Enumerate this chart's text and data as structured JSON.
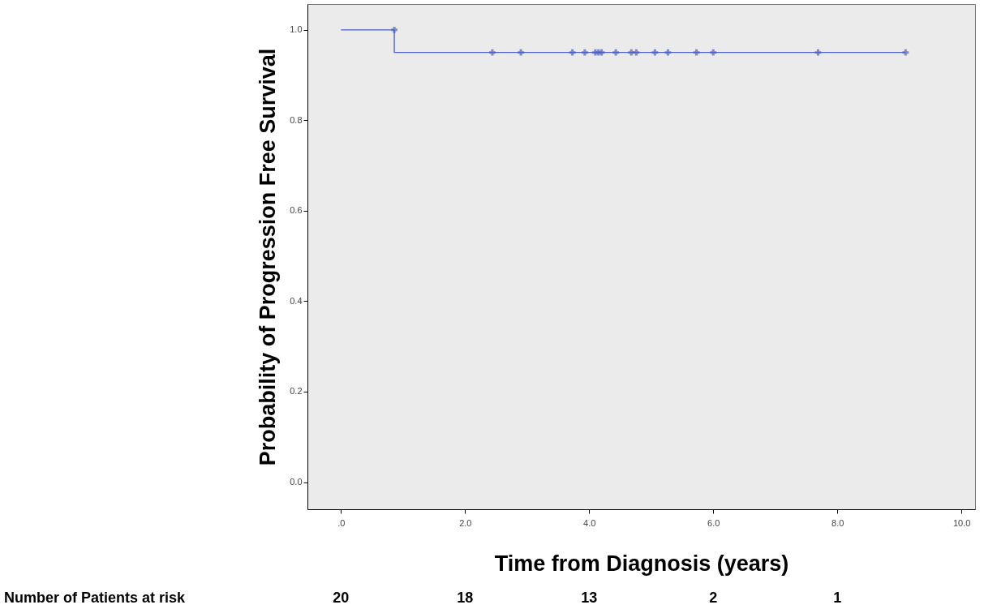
{
  "chart_data": {
    "type": "step",
    "xlabel": "Time from Diagnosis (years)",
    "ylabel": "Probability of Progression Free Survival",
    "series": [
      {
        "color": "#4a5fc1",
        "x": [
          0,
          0.86,
          9.1
        ],
        "values": [
          1.0,
          0.95,
          0.95
        ],
        "line_style": "solid"
      },
      {
        "type": "scatter",
        "color": "#4a5fc1",
        "x": [
          0.86,
          2.44,
          2.9,
          3.73,
          3.93,
          4.1,
          4.15,
          4.2,
          4.43,
          4.68,
          4.76,
          5.06,
          5.27,
          5.73,
          6.0,
          7.69,
          9.1
        ],
        "values": [
          1.0,
          0.95,
          0.95,
          0.95,
          0.95,
          0.95,
          0.95,
          0.95,
          0.95,
          0.95,
          0.95,
          0.95,
          0.95,
          0.95,
          0.95,
          0.95,
          0.95
        ],
        "marker": "cross"
      }
    ],
    "xlim": [
      -0.54,
      10.22
    ],
    "ylim": [
      -0.06,
      1.057
    ],
    "xticks": [
      {
        "value": 0,
        "label": ".0"
      },
      {
        "value": 2,
        "label": "2.0"
      },
      {
        "value": 4,
        "label": "4.0"
      },
      {
        "value": 6,
        "label": "6.0"
      },
      {
        "value": 8,
        "label": "8.0"
      },
      {
        "value": 10,
        "label": "10.0"
      }
    ],
    "yticks": [
      {
        "value": 0,
        "label": "0.0"
      },
      {
        "value": 0.2,
        "label": "0.2"
      },
      {
        "value": 0.4,
        "label": "0.4"
      },
      {
        "value": 0.6,
        "label": "0.6"
      },
      {
        "value": 0.8,
        "label": "0.8"
      },
      {
        "value": 1.0,
        "label": "1.0"
      }
    ],
    "grid": false,
    "annotations": [
      "Number of Patients at risk",
      "20",
      "18",
      "13",
      "2",
      "1"
    ]
  }
}
